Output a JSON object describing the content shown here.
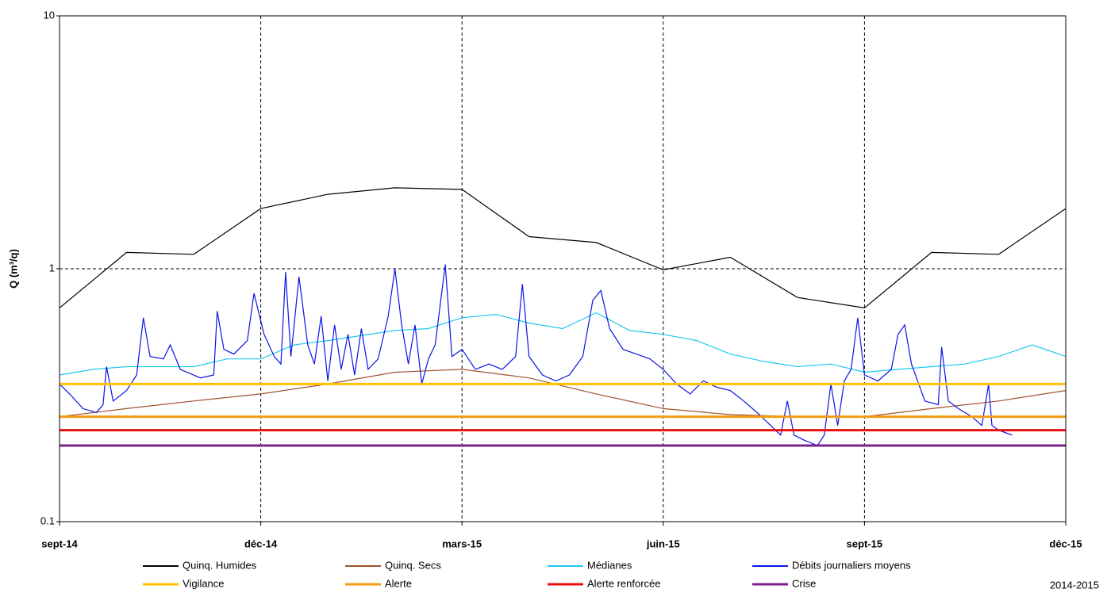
{
  "chart_data": {
    "type": "line",
    "y_label": "Q (m³/q)",
    "annotation": "2014-2015",
    "log_y": true,
    "grid": true,
    "grid_style": "dashed",
    "xlim": [
      0,
      15
    ],
    "xticks": [
      {
        "value": 0,
        "label": "sept-14"
      },
      {
        "value": 3,
        "label": "déc-14"
      },
      {
        "value": 6,
        "label": "mars-15"
      },
      {
        "value": 9,
        "label": "juin-15"
      },
      {
        "value": 12,
        "label": "sept-15"
      },
      {
        "value": 15,
        "label": "déc-15"
      }
    ],
    "ylim": [
      0.1,
      10
    ],
    "yticks": [
      0.1,
      1,
      10
    ],
    "series": [
      {
        "name": "Quinq. Humides",
        "color": "#000000",
        "width": 1.2,
        "x": [
          0,
          1,
          2,
          3,
          4,
          5,
          6,
          7,
          8,
          9,
          10,
          11,
          12,
          13,
          14,
          15
        ],
        "values": [
          0.7,
          1.16,
          1.14,
          1.73,
          1.97,
          2.09,
          2.06,
          1.34,
          1.27,
          0.99,
          1.11,
          0.77,
          0.7,
          1.16,
          1.14,
          1.73
        ]
      },
      {
        "name": "Quinq. Secs",
        "color": "#a0522d",
        "width": 1.2,
        "x": [
          0,
          1,
          2,
          3,
          4,
          5,
          6,
          7,
          8,
          9,
          10,
          11,
          12,
          13,
          14,
          15
        ],
        "values": [
          0.26,
          0.28,
          0.3,
          0.32,
          0.35,
          0.39,
          0.4,
          0.37,
          0.32,
          0.28,
          0.265,
          0.26,
          0.26,
          0.28,
          0.3,
          0.33
        ]
      },
      {
        "name": "Médianes",
        "color": "#1ec8f0",
        "width": 1.2,
        "x": [
          0,
          0.5,
          1,
          2,
          2.5,
          3,
          3.5,
          4,
          5,
          5.5,
          6,
          6.5,
          7,
          7.5,
          8,
          8.5,
          9,
          9.5,
          10,
          10.5,
          11,
          11.5,
          12,
          12.5,
          13,
          13.5,
          14,
          14.5,
          15
        ],
        "values": [
          0.38,
          0.4,
          0.41,
          0.41,
          0.44,
          0.44,
          0.5,
          0.52,
          0.57,
          0.58,
          0.64,
          0.66,
          0.61,
          0.58,
          0.67,
          0.57,
          0.55,
          0.52,
          0.46,
          0.43,
          0.41,
          0.42,
          0.39,
          0.4,
          0.41,
          0.42,
          0.45,
          0.5,
          0.45
        ]
      },
      {
        "name": "Débits journaliers moyens",
        "color": "#0a14e6",
        "width": 1.2,
        "x": [
          0,
          0.15,
          0.35,
          0.55,
          0.65,
          0.7,
          0.8,
          1.0,
          1.15,
          1.25,
          1.35,
          1.55,
          1.65,
          1.8,
          2.1,
          2.3,
          2.35,
          2.45,
          2.6,
          2.8,
          2.9,
          3.05,
          3.2,
          3.3,
          3.37,
          3.45,
          3.57,
          3.7,
          3.8,
          3.9,
          4.0,
          4.1,
          4.2,
          4.3,
          4.4,
          4.5,
          4.6,
          4.75,
          4.9,
          5.0,
          5.1,
          5.2,
          5.3,
          5.4,
          5.5,
          5.6,
          5.75,
          5.85,
          6.0,
          6.2,
          6.4,
          6.6,
          6.8,
          6.9,
          7.0,
          7.2,
          7.4,
          7.6,
          7.8,
          7.95,
          8.07,
          8.2,
          8.4,
          8.6,
          8.8,
          9.0,
          9.2,
          9.4,
          9.6,
          9.8,
          10.0,
          10.2,
          10.4,
          10.6,
          10.75,
          10.85,
          10.95,
          11.1,
          11.3,
          11.4,
          11.5,
          11.6,
          11.7,
          11.8,
          11.9,
          12.0,
          12.2,
          12.4,
          12.5,
          12.6,
          12.7,
          12.9,
          13.1,
          13.15,
          13.25,
          13.4,
          13.6,
          13.75,
          13.85,
          13.9,
          14.0,
          14.2
        ],
        "values": [
          0.35,
          0.32,
          0.28,
          0.27,
          0.29,
          0.41,
          0.3,
          0.33,
          0.38,
          0.64,
          0.45,
          0.44,
          0.5,
          0.4,
          0.37,
          0.38,
          0.68,
          0.48,
          0.46,
          0.52,
          0.8,
          0.55,
          0.45,
          0.42,
          0.97,
          0.45,
          0.93,
          0.5,
          0.42,
          0.65,
          0.36,
          0.6,
          0.4,
          0.55,
          0.38,
          0.58,
          0.4,
          0.44,
          0.65,
          1.0,
          0.6,
          0.42,
          0.6,
          0.35,
          0.44,
          0.5,
          1.04,
          0.45,
          0.48,
          0.4,
          0.42,
          0.4,
          0.45,
          0.87,
          0.45,
          0.38,
          0.36,
          0.38,
          0.45,
          0.75,
          0.82,
          0.58,
          0.48,
          0.46,
          0.44,
          0.4,
          0.35,
          0.32,
          0.36,
          0.34,
          0.33,
          0.3,
          0.27,
          0.24,
          0.22,
          0.3,
          0.22,
          0.21,
          0.2,
          0.22,
          0.35,
          0.24,
          0.36,
          0.4,
          0.64,
          0.38,
          0.36,
          0.4,
          0.55,
          0.6,
          0.42,
          0.3,
          0.29,
          0.49,
          0.3,
          0.28,
          0.26,
          0.24,
          0.35,
          0.24,
          0.23,
          0.22
        ]
      },
      {
        "name": "Vigilance",
        "color": "#ffc000",
        "width": 3,
        "x": [
          0,
          15
        ],
        "values": [
          0.35,
          0.35
        ]
      },
      {
        "name": "Alerte",
        "color": "#f39c12",
        "width": 3,
        "x": [
          0,
          15
        ],
        "values": [
          0.26,
          0.26
        ]
      },
      {
        "name": "Alerte renforcée",
        "color": "#e81010",
        "width": 3,
        "x": [
          0,
          15
        ],
        "values": [
          0.23,
          0.23
        ]
      },
      {
        "name": "Crise",
        "color": "#7b1f8c",
        "width": 3,
        "x": [
          0,
          15
        ],
        "values": [
          0.2,
          0.2
        ]
      }
    ]
  }
}
